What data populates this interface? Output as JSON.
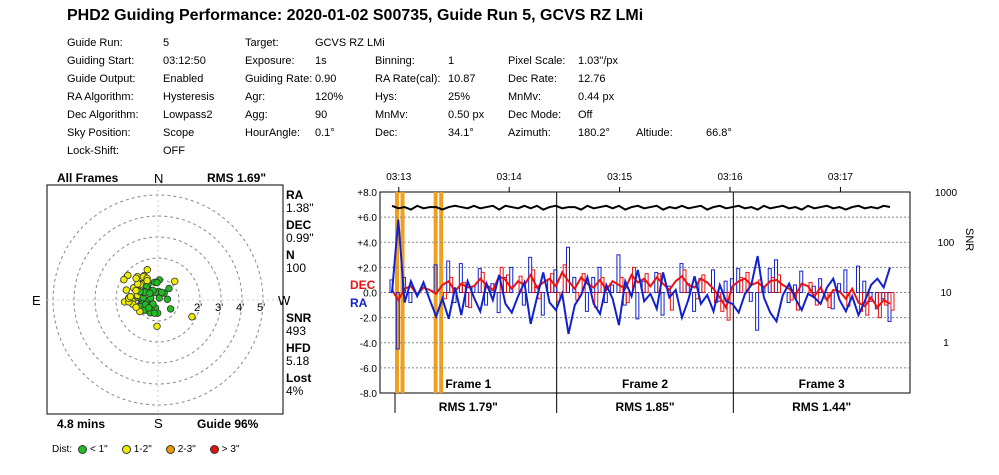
{
  "title": "PHD2 Guiding Performance: 2020-01-02 S00735, Guide Run 5, GCVS RZ LMi",
  "info": {
    "rows": [
      [
        {
          "label": "Guide Run:",
          "value": "5"
        },
        {
          "label": "Target:",
          "value": "GCVS RZ LMi"
        }
      ],
      [
        {
          "label": "Guiding Start:",
          "value": "03:12:50"
        },
        {
          "label": "Exposure:",
          "value": "1s"
        },
        {
          "label": "Binning:",
          "value": "1"
        },
        {
          "label": "Pixel Scale:",
          "value": "1.03\"/px"
        }
      ],
      [
        {
          "label": "Guide Output:",
          "value": "Enabled"
        },
        {
          "label": "Guiding Rate:",
          "value": "0.90"
        },
        {
          "label": "RA Rate(cal):",
          "value": "10.87"
        },
        {
          "label": "Dec Rate:",
          "value": "12.76"
        }
      ],
      [
        {
          "label": "RA Algorithm:",
          "value": "Hysteresis"
        },
        {
          "label": "Agr:",
          "value": "120%"
        },
        {
          "label": "Hys:",
          "value": "25%"
        },
        {
          "label": "MnMv:",
          "value": "0.44 px"
        }
      ],
      [
        {
          "label": "Dec Algorithm:",
          "value": "Lowpass2"
        },
        {
          "label": "Agg:",
          "value": "90"
        },
        {
          "label": "MnMv:",
          "value": "0.50 px"
        },
        {
          "label": "Dec Mode:",
          "value": "Off"
        }
      ],
      [
        {
          "label": "Sky Position:",
          "value": "Scope"
        },
        {
          "label": "HourAngle:",
          "value": "0.1°"
        },
        {
          "label": "Dec:",
          "value": "34.1°"
        },
        {
          "label": "Azimuth:",
          "value": "180.2°"
        },
        {
          "label": "Altiude:",
          "value": "66.8°"
        }
      ],
      [
        {
          "label": "Lock-Shift:",
          "value": "OFF"
        }
      ]
    ]
  },
  "scatter": {
    "header_left": "All Frames",
    "header_right": "RMS 1.69\"",
    "footer_left": "4.8 mins",
    "footer_right": "Guide 96%",
    "compass": {
      "n": "N",
      "s": "S",
      "e": "E",
      "w": "W"
    },
    "ring_labels": [
      "2'",
      "3'",
      "4'",
      "5'"
    ],
    "stats": [
      {
        "label": "RA",
        "value": "1.38\""
      },
      {
        "label": "DEC",
        "value": "0.99\""
      },
      {
        "label": "N",
        "value": "100"
      },
      {
        "label": "SNR",
        "value": "493"
      },
      {
        "label": "HFD",
        "value": "5.18"
      },
      {
        "label": "Lost",
        "value": "4%"
      }
    ],
    "legend": {
      "title": "Dist:",
      "items": [
        {
          "label": "< 1\"",
          "color": "#22bb22"
        },
        {
          "label": "1-2\"",
          "color": "#eeee00"
        },
        {
          "label": "2-3\"",
          "color": "#ee9900"
        },
        {
          "label": "> 3\"",
          "color": "#dd1111"
        }
      ]
    }
  },
  "chart_data": {
    "type": "line",
    "x_unit": "time (hh:mm)",
    "x_ticks": [
      "03:13",
      "03:14",
      "03:15",
      "03:16",
      "03:17"
    ],
    "x_tick_positions_minutes": [
      0.17,
      1.17,
      2.17,
      3.17,
      4.17
    ],
    "xlim_minutes": [
      0,
      4.8
    ],
    "ylim": [
      -8,
      8
    ],
    "yticks": [
      "+8.0",
      "+6.0",
      "+4.0",
      "+2.0",
      "0.0",
      "-2.0",
      "-4.0",
      "-6.0",
      "-8.0"
    ],
    "y2_label": "SNR",
    "y2_ticks": [
      "1000",
      "100",
      "10",
      "1"
    ],
    "y2_scale": "log",
    "grid": true,
    "series": [
      {
        "name": "DEC",
        "color": "#ee1111",
        "values": [
          0.2,
          -0.6,
          0.3,
          0.5,
          -0.2,
          0.4,
          0.2,
          -0.1,
          0.6,
          0.9,
          0.1,
          0.7,
          0.4,
          0.5,
          1.1,
          0.6,
          0.2,
          1.3,
          1.0,
          0.3,
          0.9,
          0.6,
          1.4,
          0.4,
          0.8,
          1.1,
          0.5,
          1.6,
          0.9,
          0.3,
          1.2,
          0.7,
          0.4,
          1.0,
          0.2,
          0.9,
          0.6,
          0.3,
          1.4,
          0.8,
          1.1,
          0.5,
          1.2,
          0.7,
          0.2,
          0.9,
          1.3,
          0.6,
          0.4,
          1.1,
          0.8,
          0.3,
          -0.4,
          -1.2,
          0.5,
          0.9,
          1.1,
          0.6,
          0.8,
          0.4,
          0.9,
          1.0,
          0.6,
          0.3,
          -0.2,
          0.7,
          0.5,
          -0.3,
          0.4,
          -0.6,
          0.2,
          0.1,
          -0.5,
          0.3,
          -0.8,
          -1.1,
          -0.4,
          -1.2,
          -0.6,
          -0.9
        ]
      },
      {
        "name": "RA",
        "color": "#1122cc",
        "values": [
          0.0,
          5.8,
          -0.8,
          0.9,
          -0.3,
          0.8,
          -0.6,
          -1.9,
          -0.5,
          -2.1,
          0.4,
          -1.8,
          0.9,
          -0.4,
          -1.5,
          0.7,
          -0.6,
          1.4,
          -0.9,
          -1.6,
          -0.3,
          0.8,
          -2.5,
          -0.4,
          1.6,
          -0.8,
          -1.4,
          -0.1,
          -3.3,
          -1.0,
          -0.2,
          1.2,
          -0.9,
          -1.7,
          0.6,
          -0.5,
          -2.6,
          0.9,
          -0.3,
          1.8,
          -0.7,
          -0.1,
          -1.3,
          1.6,
          -0.4,
          0.2,
          -2.0,
          -0.6,
          1.3,
          -0.9,
          -0.2,
          -1.5,
          0.6,
          -0.7,
          -0.9,
          -1.6,
          -0.1,
          0.6,
          2.9,
          -0.4,
          -1.6,
          -2.3,
          -0.2,
          0.7,
          -0.5,
          -1.4,
          -0.1,
          -0.4,
          -0.9,
          0.4,
          1.1,
          -0.6,
          -1.5,
          -0.3,
          -1.8,
          -0.7,
          0.6,
          1.1,
          0.4,
          2.0
        ]
      },
      {
        "name": "SNR",
        "color": "#000000",
        "values": [
          6.9,
          6.7,
          6.8,
          6.6,
          6.9,
          6.7,
          6.8,
          6.8,
          6.6,
          6.8,
          6.9,
          6.8,
          6.7,
          6.9,
          6.7,
          6.8,
          6.9,
          6.6,
          6.9,
          6.8,
          6.7,
          6.9,
          6.7,
          6.9,
          6.6,
          6.8,
          6.9,
          6.7,
          6.8,
          6.8,
          6.6,
          6.9,
          6.7,
          6.8,
          6.9,
          6.7,
          6.9,
          6.6,
          6.8,
          6.9,
          6.7,
          6.8,
          6.9,
          6.6,
          6.8,
          6.7,
          6.9,
          6.7,
          6.8,
          6.9,
          6.6,
          6.8,
          6.9,
          6.7,
          6.8,
          6.9,
          6.7,
          6.8,
          6.6,
          6.9,
          6.7,
          6.8,
          6.9,
          6.7,
          6.8,
          6.6,
          6.9,
          6.7,
          6.8,
          6.9,
          6.7,
          6.8,
          6.6,
          6.8,
          6.9,
          6.7,
          6.8,
          6.7,
          6.9,
          6.8
        ]
      }
    ],
    "corrections_dec": [
      0.0,
      0.0,
      0.0,
      0.0,
      0.0,
      0.0,
      0.0,
      0.0,
      -0.5,
      1.2,
      0.0,
      0.8,
      -1.2,
      0.0,
      1.6,
      0.0,
      0.0,
      2.0,
      1.4,
      0.0,
      1.3,
      0.0,
      1.8,
      -0.5,
      0.0,
      1.5,
      -0.7,
      2.2,
      0.0,
      -0.6,
      1.5,
      0.0,
      -1.2,
      1.2,
      0.0,
      0.0,
      1.2,
      -0.8,
      2.0,
      0.0,
      1.5,
      0.0,
      1.5,
      0.0,
      -1.4,
      0.0,
      1.8,
      0.0,
      -0.5,
      1.4,
      0.0,
      -0.8,
      -1.5,
      -2.2,
      0.0,
      1.2,
      1.6,
      0.0,
      1.0,
      0.0,
      1.2,
      1.4,
      0.0,
      -0.6,
      -1.4,
      0.0,
      0.8,
      -1.0,
      0.0,
      -1.2,
      0.0,
      0.0,
      -1.1,
      0.0,
      -1.5,
      -1.8,
      0.0,
      -2.0,
      -1.0,
      -1.4
    ],
    "corrections_ra": [
      1.0,
      -4.5,
      1.2,
      -0.8,
      0.0,
      0.0,
      0.0,
      2.2,
      0.0,
      2.5,
      -0.8,
      2.3,
      -1.1,
      0.5,
      1.9,
      -1.0,
      0.7,
      -1.6,
      1.2,
      2.0,
      0.0,
      -1.0,
      2.8,
      0.4,
      -1.8,
      1.0,
      1.8,
      0.0,
      3.6,
      1.2,
      0.0,
      -1.5,
      1.2,
      2.0,
      -0.8,
      0.6,
      3.0,
      -1.0,
      0.0,
      -2.1,
      0.9,
      0.0,
      1.6,
      -1.8,
      0.5,
      0.0,
      2.3,
      0.7,
      -1.5,
      1.1,
      0.0,
      1.8,
      -0.7,
      0.9,
      1.1,
      1.9,
      0.0,
      -0.7,
      -3.0,
      0.5,
      1.9,
      2.6,
      0.0,
      -0.8,
      0.6,
      1.7,
      0.0,
      0.5,
      1.1,
      -0.5,
      -1.3,
      0.7,
      1.8,
      0.0,
      2.1,
      0.9,
      -0.7,
      -1.3,
      -0.5,
      -2.3
    ],
    "dithers_minutes": [
      0.0,
      0.05,
      0.35,
      0.4
    ],
    "frames": [
      {
        "label": "Frame 1",
        "rms": "RMS 1.79\""
      },
      {
        "label": "Frame 2",
        "rms": "RMS 1.85\""
      },
      {
        "label": "Frame 3",
        "rms": "RMS 1.44\""
      }
    ],
    "frame_boundaries_minutes": [
      0.0,
      1.6,
      3.2,
      4.8
    ]
  }
}
